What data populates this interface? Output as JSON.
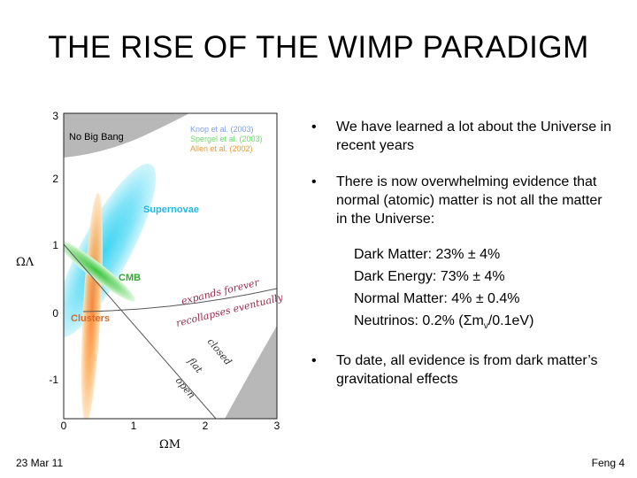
{
  "title": "THE RISE OF THE WIMP PARADIGM",
  "plot": {
    "y_ticks": [
      "3",
      "2",
      "1",
      "0",
      "-1"
    ],
    "x_ticks": [
      "0",
      "1",
      "2",
      "3"
    ],
    "y_label": "ΩΛ",
    "x_label": "ΩM",
    "legend": [
      {
        "label": "Knop et al. (2003)",
        "color": "#7f9fe8"
      },
      {
        "label": "Spergel et al. (2003)",
        "color": "#6fd86f"
      },
      {
        "label": "Allen et al. (2002)",
        "color": "#e89a3a"
      }
    ],
    "region_labels": {
      "no_big_bang": "No Big Bang",
      "supernovae": "Supernovae",
      "cmb": "CMB",
      "clusters": "Clusters",
      "expands": "expands forever",
      "recollapses": "recollapses eventually",
      "closed": "closed",
      "flat": "flat",
      "open": "open"
    }
  },
  "bullets": {
    "first": "We have learned a lot about the Universe in recent years",
    "second": "There is now overwhelming evidence that normal (atomic) matter is not all the matter in the Universe:",
    "third": "To date, all evidence is from dark matter’s gravitational effects",
    "marker": "•"
  },
  "stats": {
    "dark_matter": "Dark Matter: 23% ± 4%",
    "dark_energy": "Dark Energy: 73% ± 4%",
    "normal_matter": "Normal Matter: 4% ± 0.4%",
    "neutrinos_prefix": "Neutrinos: 0.2% (Σm",
    "neutrinos_sub": "ν",
    "neutrinos_suffix": "/0.1eV)"
  },
  "footer": {
    "date": "23 Mar 11",
    "page": "Feng 4"
  }
}
